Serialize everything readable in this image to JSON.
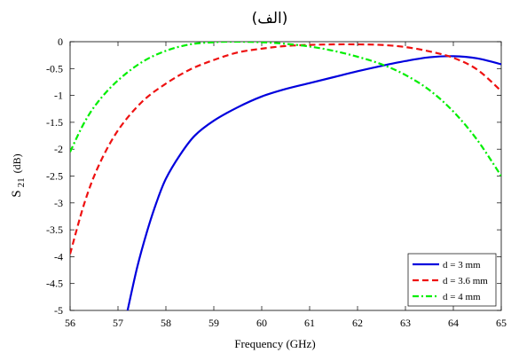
{
  "chart_data": {
    "type": "line",
    "title": "(الف)",
    "xlabel": "Frequency (GHz)",
    "ylabel": {
      "main": "S",
      "sub": "21",
      "unit": "(dB)"
    },
    "xlim": [
      56,
      65
    ],
    "ylim": [
      -5,
      0
    ],
    "xticks": [
      "56",
      "57",
      "58",
      "59",
      "60",
      "61",
      "62",
      "63",
      "64",
      "65"
    ],
    "yticks": [
      "0",
      "-0.5",
      "-1",
      "-1.5",
      "-2",
      "-2.5",
      "-3",
      "-3.5",
      "-4",
      "-4.5",
      "-5"
    ],
    "grid": false,
    "legend_position": "bottom-right",
    "series": [
      {
        "name": "d = 3 mm",
        "color": "#0000dd",
        "dash": "solid",
        "x": [
          57.2,
          57.4,
          57.6,
          57.8,
          58.0,
          58.3,
          58.6,
          59.0,
          59.5,
          60.0,
          60.5,
          61.0,
          61.5,
          62.0,
          62.5,
          63.0,
          63.5,
          64.0,
          64.5,
          65.0
        ],
        "y": [
          -5.0,
          -4.2,
          -3.55,
          -3.0,
          -2.55,
          -2.1,
          -1.75,
          -1.47,
          -1.22,
          -1.02,
          -0.88,
          -0.77,
          -0.66,
          -0.55,
          -0.45,
          -0.36,
          -0.29,
          -0.27,
          -0.31,
          -0.42
        ]
      },
      {
        "name": "d = 3.6 mm",
        "color": "#ee1111",
        "dash": "dashed",
        "x": [
          56.0,
          56.3,
          56.6,
          57.0,
          57.5,
          58.0,
          58.5,
          59.0,
          59.5,
          60.0,
          60.5,
          61.0,
          61.5,
          62.0,
          62.5,
          63.0,
          63.5,
          64.0,
          64.5,
          65.0
        ],
        "y": [
          -3.95,
          -3.0,
          -2.3,
          -1.65,
          -1.12,
          -0.78,
          -0.52,
          -0.34,
          -0.2,
          -0.13,
          -0.08,
          -0.06,
          -0.05,
          -0.05,
          -0.06,
          -0.1,
          -0.18,
          -0.3,
          -0.52,
          -0.92
        ]
      },
      {
        "name": "d = 4 mm",
        "color": "#00ee00",
        "dash": "dashdot",
        "x": [
          56.0,
          56.3,
          56.6,
          57.0,
          57.5,
          58.0,
          58.5,
          59.0,
          59.4,
          60.0,
          60.5,
          61.0,
          61.5,
          62.0,
          62.5,
          63.0,
          63.5,
          64.0,
          64.5,
          65.0
        ],
        "y": [
          -2.05,
          -1.5,
          -1.1,
          -0.72,
          -0.38,
          -0.17,
          -0.05,
          -0.01,
          0.0,
          -0.01,
          -0.04,
          -0.09,
          -0.17,
          -0.28,
          -0.42,
          -0.62,
          -0.9,
          -1.3,
          -1.83,
          -2.5
        ]
      }
    ]
  }
}
